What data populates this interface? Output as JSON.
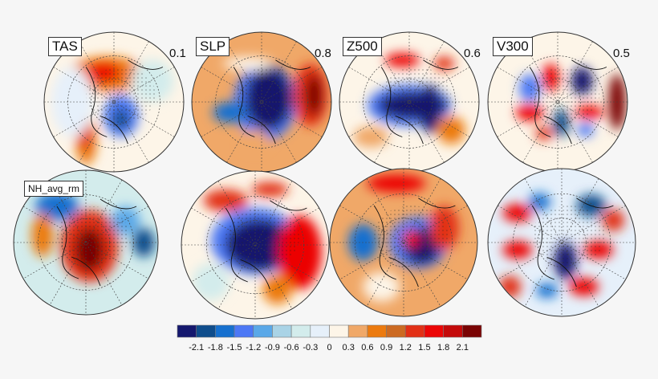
{
  "panels": [
    {
      "label": "TAS",
      "value": "0.1"
    },
    {
      "label": "SLP",
      "value": "0.8"
    },
    {
      "label": "Z500",
      "value": "0.6"
    },
    {
      "label": "V300",
      "value": "0.5"
    },
    {
      "label": "NH_avg_rm",
      "value": ""
    },
    {
      "label": "",
      "value": ""
    },
    {
      "label": "",
      "value": ""
    },
    {
      "label": "",
      "value": ""
    }
  ],
  "colorbar": {
    "ticks": [
      "-2.1",
      "-1.8",
      "-1.5",
      "-1.2",
      "-0.9",
      "-0.6",
      "-0.3",
      "0",
      "0.3",
      "0.6",
      "0.9",
      "1.2",
      "1.5",
      "1.8",
      "2.1"
    ],
    "colors": [
      "#15186e",
      "#0f4d8c",
      "#1670cf",
      "#4c78f5",
      "#5aa8e8",
      "#a9d3e6",
      "#d3ecec",
      "#e6f0fa",
      "#fdf5e8",
      "#f0a868",
      "#ec7a0e",
      "#cc6a22",
      "#e23016",
      "#ec0606",
      "#c40a0a",
      "#7a0404"
    ]
  }
}
